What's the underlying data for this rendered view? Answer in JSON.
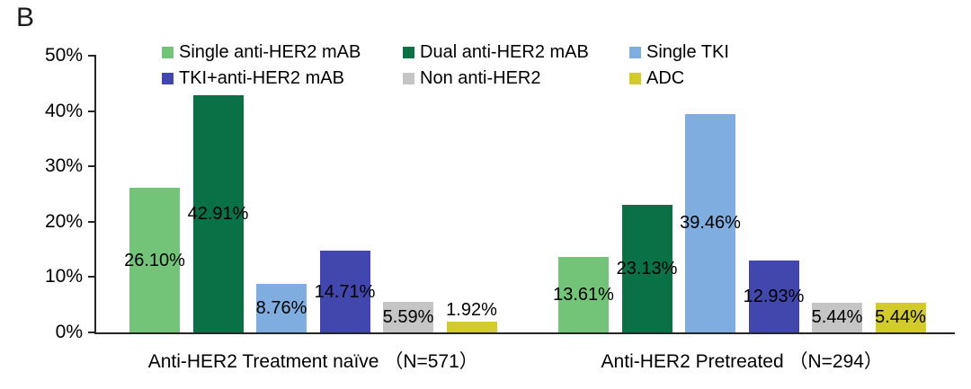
{
  "panel_label": "B",
  "chart_data": {
    "type": "bar",
    "title": "",
    "xlabel": "",
    "ylabel": "",
    "ylim": [
      0,
      50
    ],
    "grid": "off",
    "legend_position": "top",
    "yticks": [
      {
        "value": 0,
        "label": "0%"
      },
      {
        "value": 10,
        "label": "10%"
      },
      {
        "value": 20,
        "label": "20%"
      },
      {
        "value": 30,
        "label": "30%"
      },
      {
        "value": 40,
        "label": "40%"
      },
      {
        "value": 50,
        "label": "50%"
      }
    ],
    "categories": [
      "Anti-HER2 Treatment naïve （N=571）",
      "Anti-HER2 Pretreated （N=294）"
    ],
    "series": [
      {
        "key": "single-anti-her2-mab",
        "name": "Single anti-HER2 mAB",
        "color": "#73C478",
        "values": [
          26.1,
          13.61
        ],
        "labels": [
          "26.10%",
          "13.61%"
        ]
      },
      {
        "key": "dual-anti-her2-mab",
        "name": "Dual anti-HER2 mAB",
        "color": "#0A7045",
        "values": [
          42.91,
          23.13
        ],
        "labels": [
          "42.91%",
          "23.13%"
        ]
      },
      {
        "key": "single-tki",
        "name": "Single TKI",
        "color": "#7FADDF",
        "values": [
          8.76,
          39.46
        ],
        "labels": [
          "8.76%",
          "39.46%"
        ]
      },
      {
        "key": "tki-anti-her2-mab",
        "name": "TKI+anti-HER2 mAB",
        "color": "#4247AE",
        "values": [
          14.71,
          12.93
        ],
        "labels": [
          "14.71%",
          "12.93%"
        ]
      },
      {
        "key": "non-anti-her2",
        "name": "Non anti-HER2",
        "color": "#C5C5C5",
        "values": [
          5.59,
          5.44
        ],
        "labels": [
          "5.59%",
          "5.44%"
        ]
      },
      {
        "key": "adc",
        "name": "ADC",
        "color": "#D3CB2B",
        "values": [
          1.92,
          5.44
        ],
        "labels": [
          "1.92%",
          "5.44%"
        ]
      }
    ]
  }
}
